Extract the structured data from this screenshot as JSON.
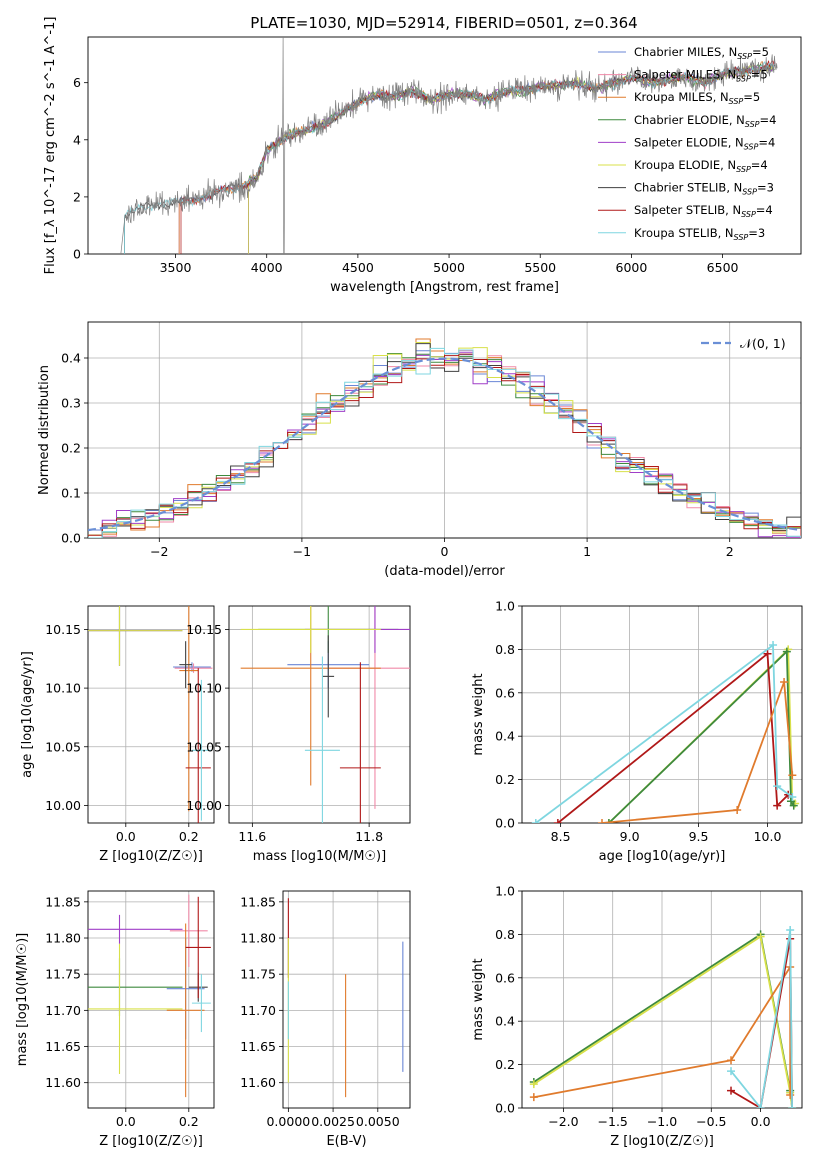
{
  "figure_title": "PLATE=1030, MJD=52914, FIBERID=0501, z=0.364",
  "colors": {
    "Chabrier MILES": "#6a86d6",
    "Salpeter MILES": "#f08aa8",
    "Kroupa MILES": "#e07b2d",
    "Chabrier ELODIE": "#3e8a3e",
    "Salpeter ELODIE": "#a03ec8",
    "Kroupa ELODIE": "#d8e04a",
    "Chabrier STELIB": "#404040",
    "Salpeter STELIB": "#b01818",
    "Kroupa STELIB": "#7fd6e0",
    "data": "#808080",
    "gaussian": "#6a8fd6"
  },
  "chart_data": [
    {
      "id": "spectrum",
      "type": "line",
      "title": "PLATE=1030, MJD=52914, FIBERID=0501, z=0.364",
      "xlabel": "wavelength [Angstrom, rest frame]",
      "ylabel": "Flux [f_λ 10^-17 erg cm^-2 s^-1 A^-1]",
      "xlim": [
        3020,
        6930
      ],
      "ylim": [
        0,
        7.6
      ],
      "xticks": [
        3500,
        4000,
        4500,
        5000,
        5500,
        6000,
        6500
      ],
      "yticks": [
        0,
        2,
        4,
        6
      ],
      "grid": false,
      "legend_position": "top-right",
      "legend": [
        {
          "label": "Chabrier MILES",
          "sub": "SSP",
          "n": "=5",
          "series": "Chabrier MILES"
        },
        {
          "label": "Salpeter MILES",
          "sub": "SSP",
          "n": "=5",
          "series": "Salpeter MILES"
        },
        {
          "label": "Kroupa MILES",
          "sub": "SSP",
          "n": "=5",
          "series": "Kroupa MILES"
        },
        {
          "label": "Chabrier ELODIE",
          "sub": "SSP",
          "n": "=4",
          "series": "Chabrier ELODIE"
        },
        {
          "label": "Salpeter ELODIE",
          "sub": "SSP",
          "n": "=4",
          "series": "Salpeter ELODIE"
        },
        {
          "label": "Kroupa ELODIE",
          "sub": "SSP",
          "n": "=4",
          "series": "Kroupa ELODIE"
        },
        {
          "label": "Chabrier STELIB",
          "sub": "SSP",
          "n": "=3",
          "series": "Chabrier STELIB"
        },
        {
          "label": "Salpeter STELIB",
          "sub": "SSP",
          "n": "=4",
          "series": "Salpeter STELIB"
        },
        {
          "label": "Kroupa STELIB",
          "sub": "SSP",
          "n": "=3",
          "series": "Kroupa STELIB"
        }
      ],
      "continuum": {
        "x": [
          3220,
          3300,
          3400,
          3500,
          3600,
          3700,
          3800,
          3900,
          3950,
          4000,
          4100,
          4200,
          4300,
          4400,
          4500,
          4600,
          4700,
          4800,
          4900,
          5000,
          5100,
          5200,
          5300,
          5400,
          5500,
          5600,
          5700,
          5800,
          5900,
          6000,
          6100,
          6200,
          6300,
          6400,
          6500,
          6600,
          6700,
          6780
        ],
        "y": [
          1.35,
          1.6,
          1.75,
          1.8,
          1.9,
          2.1,
          2.3,
          2.5,
          2.7,
          3.6,
          4.1,
          4.3,
          4.5,
          4.9,
          5.3,
          5.6,
          5.5,
          5.7,
          5.4,
          5.6,
          5.6,
          5.4,
          5.7,
          5.7,
          5.9,
          5.9,
          6.0,
          5.8,
          6.0,
          6.2,
          6.0,
          6.1,
          6.2,
          6.0,
          6.3,
          6.4,
          6.5,
          6.6
        ]
      },
      "model_starts": {
        "Chabrier MILES": 3520,
        "Salpeter MILES": 3520,
        "Kroupa MILES": 3520,
        "Chabrier ELODIE": 3900,
        "Salpeter ELODIE": 3900,
        "Kroupa ELODIE": 3900,
        "Chabrier STELIB": 3220,
        "Salpeter STELIB": 3530,
        "Kroupa STELIB": 3220
      },
      "data_x_range": [
        3200,
        6800
      ]
    },
    {
      "id": "residual_hist",
      "type": "line",
      "xlabel": "(data-model)/error",
      "ylabel": "Normed distribution",
      "xlim": [
        -2.5,
        2.5
      ],
      "ylim": [
        0,
        0.48
      ],
      "xticks": [
        -2,
        -1,
        0,
        1,
        2
      ],
      "yticks": [
        0.0,
        0.1,
        0.2,
        0.3,
        0.4
      ],
      "grid": true,
      "legend_position": "top-right",
      "legend": [
        {
          "label": "𝒩(0, 1)",
          "series": "gaussian"
        }
      ],
      "bin_width": 0.1,
      "bin_start": -2.5
    },
    {
      "id": "age_vs_Z",
      "type": "scatter",
      "xlabel": "Z [log10(Z/Z☉)]",
      "ylabel": "age  [log10(age/yr)]",
      "xlim": [
        -0.12,
        0.28
      ],
      "ylim": [
        9.985,
        10.17
      ],
      "xticks": [
        0.0,
        0.2
      ],
      "yticks": [
        10.0,
        10.05,
        10.1,
        10.15
      ],
      "grid": true,
      "points": [
        {
          "series": "Chabrier MILES",
          "x": 0.21,
          "y": 10.118,
          "xerr": 0.06,
          "yerr": 0.004
        },
        {
          "series": "Salpeter MILES",
          "x": 0.215,
          "y": 10.117,
          "xerr": 0.06,
          "yerr": 0.004
        },
        {
          "series": "Kroupa MILES",
          "x": 0.2,
          "y": 10.115,
          "xerr": 0.03,
          "yerr": 0.12
        },
        {
          "series": "Chabrier ELODIE",
          "x": -0.02,
          "y": 10.149,
          "xerr": 0.2,
          "yerr": 0.03
        },
        {
          "series": "Salpeter ELODIE",
          "x": -0.02,
          "y": 10.149,
          "xerr": 0.2,
          "yerr": 0.03
        },
        {
          "series": "Kroupa ELODIE",
          "x": -0.02,
          "y": 10.149,
          "xerr": 0.2,
          "yerr": 0.03
        },
        {
          "series": "Chabrier STELIB",
          "x": 0.19,
          "y": 10.12,
          "xerr": 0.02,
          "yerr": 0.02
        },
        {
          "series": "Salpeter STELIB",
          "x": 0.23,
          "y": 10.032,
          "xerr": 0.04,
          "yerr": 0.085
        },
        {
          "series": "Kroupa STELIB",
          "x": 0.24,
          "y": 10.047,
          "xerr": 0.03,
          "yerr": 0.06
        }
      ]
    },
    {
      "id": "age_vs_mass",
      "type": "scatter",
      "xlabel": "mass [log10(M/M☉)]",
      "ylabel": "",
      "xlim": [
        11.56,
        11.87
      ],
      "ylim": [
        9.985,
        10.17
      ],
      "xticks": [
        11.6,
        11.8
      ],
      "yticks": [
        10.0,
        10.05,
        10.1,
        10.15
      ],
      "grid": true,
      "points": [
        {
          "series": "Chabrier MILES",
          "x": 11.73,
          "y": 10.12,
          "xerr": 0.07,
          "yerr": 0.02
        },
        {
          "series": "Salpeter MILES",
          "x": 11.81,
          "y": 10.117,
          "xerr": 0.08,
          "yerr": 0.12
        },
        {
          "series": "Kroupa MILES",
          "x": 11.7,
          "y": 10.117,
          "xerr": 0.12,
          "yerr": 0.1
        },
        {
          "series": "Chabrier ELODIE",
          "x": 11.73,
          "y": 10.15,
          "xerr": 0.12,
          "yerr": 0.02
        },
        {
          "series": "Salpeter ELODIE",
          "x": 11.81,
          "y": 10.15,
          "xerr": 0.12,
          "yerr": 0.02
        },
        {
          "series": "Kroupa ELODIE",
          "x": 11.7,
          "y": 10.15,
          "xerr": 0.12,
          "yerr": 0.02
        },
        {
          "series": "Chabrier STELIB",
          "x": 11.73,
          "y": 10.11,
          "xerr": 0.01,
          "yerr": 0.035
        },
        {
          "series": "Salpeter STELIB",
          "x": 11.785,
          "y": 10.032,
          "xerr": 0.035,
          "yerr": 0.09
        },
        {
          "series": "Kroupa STELIB",
          "x": 11.72,
          "y": 10.047,
          "xerr": 0.03,
          "yerr": 0.08
        }
      ]
    },
    {
      "id": "mass_weight_vs_age",
      "type": "line",
      "xlabel": "age  [log10(age/yr)]",
      "ylabel": "mass weight",
      "xlim": [
        8.22,
        10.25
      ],
      "ylim": [
        0,
        1.0
      ],
      "xticks": [
        8.5,
        9.0,
        9.5,
        10.0
      ],
      "yticks": [
        0.0,
        0.2,
        0.4,
        0.6,
        0.8,
        1.0
      ],
      "grid": true,
      "series": [
        {
          "name": "Kroupa ELODIE",
          "x": [
            8.85,
            10.15,
            10.18,
            10.2
          ],
          "y": [
            0.0,
            0.8,
            0.1,
            0.09
          ]
        },
        {
          "name": "Chabrier ELODIE",
          "x": [
            8.85,
            10.14,
            10.17,
            10.19
          ],
          "y": [
            0.0,
            0.79,
            0.1,
            0.08
          ]
        },
        {
          "name": "Salpeter STELIB",
          "x": [
            8.48,
            10.0,
            10.07,
            10.15
          ],
          "y": [
            0.0,
            0.78,
            0.08,
            0.13
          ]
        },
        {
          "name": "Kroupa MILES",
          "x": [
            8.8,
            9.78,
            10.12,
            10.18
          ],
          "y": [
            0.0,
            0.06,
            0.65,
            0.22
          ]
        },
        {
          "name": "Kroupa STELIB",
          "x": [
            8.32,
            10.04,
            10.07,
            10.18
          ],
          "y": [
            0.0,
            0.82,
            0.17,
            0.12
          ]
        }
      ]
    },
    {
      "id": "mass_vs_Z",
      "type": "scatter",
      "xlabel": "Z [log10(Z/Z☉)]",
      "ylabel": "mass [log10(M/M☉)]",
      "xlim": [
        -0.12,
        0.28
      ],
      "ylim": [
        11.565,
        11.865
      ],
      "xticks": [
        0.0,
        0.2
      ],
      "yticks": [
        11.6,
        11.65,
        11.7,
        11.75,
        11.8,
        11.85
      ],
      "grid": true,
      "points": [
        {
          "series": "Chabrier MILES",
          "x": 0.19,
          "y": 11.73,
          "xerr": 0.06,
          "yerr": 0.07
        },
        {
          "series": "Salpeter MILES",
          "x": 0.2,
          "y": 11.81,
          "xerr": 0.06,
          "yerr": 0.05
        },
        {
          "series": "Kroupa MILES",
          "x": 0.19,
          "y": 11.7,
          "xerr": 0.06,
          "yerr": 0.12
        },
        {
          "series": "Chabrier ELODIE",
          "x": -0.02,
          "y": 11.732,
          "xerr": 0.2,
          "yerr": 0.04
        },
        {
          "series": "Salpeter ELODIE",
          "x": -0.02,
          "y": 11.812,
          "xerr": 0.2,
          "yerr": 0.02
        },
        {
          "series": "Kroupa ELODIE",
          "x": -0.02,
          "y": 11.702,
          "xerr": 0.2,
          "yerr": 0.09
        },
        {
          "series": "Chabrier STELIB",
          "x": 0.23,
          "y": 11.732,
          "xerr": 0.03,
          "yerr": 0.02
        },
        {
          "series": "Salpeter STELIB",
          "x": 0.23,
          "y": 11.787,
          "xerr": 0.04,
          "yerr": 0.07
        },
        {
          "series": "Kroupa STELIB",
          "x": 0.24,
          "y": 11.71,
          "xerr": 0.03,
          "yerr": 0.04
        }
      ]
    },
    {
      "id": "mass_vs_EBV",
      "type": "scatter",
      "xlabel": "E(B-V)",
      "ylabel": "",
      "xlim": [
        -0.0003,
        0.0068
      ],
      "ylim": [
        11.565,
        11.865
      ],
      "xticks": [
        0.0,
        0.0025,
        0.005
      ],
      "xticklabels": [
        "0.0000",
        "0.0025",
        "0.0050"
      ],
      "yticks": [
        11.6,
        11.65,
        11.7,
        11.75,
        11.8,
        11.85
      ],
      "grid": true,
      "points": [
        {
          "series": "Salpeter STELIB",
          "x": 0.0,
          "y": 11.8,
          "xerr": 0,
          "yerr": 0.055
        },
        {
          "series": "Kroupa ELODIE",
          "x": 0.0,
          "y": 11.7,
          "xerr": 0,
          "yerr": 0.1
        },
        {
          "series": "Kroupa STELIB",
          "x": 0.0,
          "y": 11.7,
          "xerr": 0,
          "yerr": 0.04
        },
        {
          "series": "Kroupa MILES",
          "x": 0.0032,
          "y": 11.665,
          "xerr": 0,
          "yerr": 0.085
        },
        {
          "series": "Chabrier MILES",
          "x": 0.0064,
          "y": 11.705,
          "xerr": 0,
          "yerr": 0.09
        }
      ]
    },
    {
      "id": "mass_weight_vs_Z",
      "type": "line",
      "xlabel": "Z [log10(Z/Z☉)]",
      "ylabel": "mass weight",
      "xlim": [
        -2.42,
        0.42
      ],
      "ylim": [
        0,
        1.0
      ],
      "xticks": [
        -2.0,
        -1.5,
        -1.0,
        -0.5,
        0.0
      ],
      "yticks": [
        0.0,
        0.2,
        0.4,
        0.6,
        0.8,
        1.0
      ],
      "grid": true,
      "series": [
        {
          "name": "Chabrier ELODIE",
          "x": [
            -2.3,
            0.0,
            0.3,
            0.32
          ],
          "y": [
            0.12,
            0.8,
            0.08,
            0.0
          ]
        },
        {
          "name": "Kroupa ELODIE",
          "x": [
            -2.3,
            0.0,
            0.3,
            0.32
          ],
          "y": [
            0.11,
            0.79,
            0.07,
            0.0
          ]
        },
        {
          "name": "Kroupa MILES",
          "x": [
            -2.3,
            -0.3,
            0.3,
            0.3
          ],
          "y": [
            0.05,
            0.22,
            0.65,
            0.06
          ]
        },
        {
          "name": "Salpeter STELIB",
          "x": [
            -0.3,
            0.0,
            0.3,
            0.32
          ],
          "y": [
            0.08,
            0.0,
            0.78,
            0.0
          ]
        },
        {
          "name": "Kroupa STELIB",
          "x": [
            -0.3,
            0.0,
            0.3,
            0.32
          ],
          "y": [
            0.17,
            0.0,
            0.82,
            0.0
          ]
        }
      ]
    }
  ]
}
